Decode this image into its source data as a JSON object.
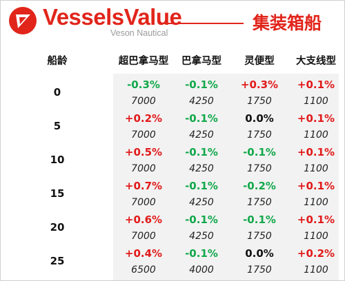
{
  "header": {
    "brand": "VesselsValue",
    "sub_brand": "Veson Nautical",
    "title": "集装箱船",
    "accent_color": "#e1251b",
    "logo_icon": "vesselsvalue-logo-icon"
  },
  "table": {
    "age_header": "船龄",
    "columns": [
      "超巴拿马型",
      "巴拿马型",
      "灵便型",
      "大支线型"
    ],
    "rows": [
      {
        "age": "0",
        "changes": [
          "-0.3%",
          "-0.1%",
          "+0.3%",
          "+0.1%"
        ],
        "values": [
          "7000",
          "4250",
          "1750",
          "1100"
        ]
      },
      {
        "age": "5",
        "changes": [
          "+0.2%",
          "-0.1%",
          "0.0%",
          "+0.1%"
        ],
        "values": [
          "7000",
          "4250",
          "1750",
          "1100"
        ]
      },
      {
        "age": "10",
        "changes": [
          "+0.5%",
          "-0.1%",
          "-0.1%",
          "+0.1%"
        ],
        "values": [
          "7000",
          "4250",
          "1750",
          "1100"
        ]
      },
      {
        "age": "15",
        "changes": [
          "+0.7%",
          "-0.1%",
          "-0.2%",
          "+0.1%"
        ],
        "values": [
          "7000",
          "4250",
          "1750",
          "1100"
        ]
      },
      {
        "age": "20",
        "changes": [
          "+0.6%",
          "-0.1%",
          "-0.1%",
          "+0.1%"
        ],
        "values": [
          "7000",
          "4250",
          "1750",
          "1100"
        ]
      },
      {
        "age": "25",
        "changes": [
          "+0.4%",
          "-0.1%",
          "0.0%",
          "+0.2%"
        ],
        "values": [
          "6500",
          "4000",
          "1750",
          "1100"
        ]
      }
    ],
    "colors": {
      "increase": "#e11a1a",
      "decrease": "#11a84a",
      "flat": "#111111",
      "shade": "#f2f2f2"
    }
  }
}
